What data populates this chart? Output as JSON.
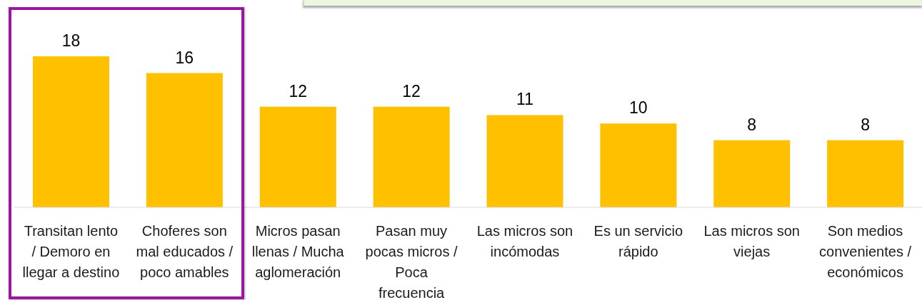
{
  "chart_data": {
    "type": "bar",
    "categories": [
      "Transitan lento / Demoro en llegar a destino",
      "Choferes son mal educados / poco amables",
      "Micros pasan llenas / Mucha aglomeración",
      "Pasan muy pocas micros / Poca frecuencia",
      "Las micros son incómodas",
      "Es un servicio rápido",
      "Las micros son viejas",
      "Son medios convenientes / económicos"
    ],
    "values": [
      18,
      16,
      12,
      12,
      11,
      10,
      8,
      8
    ],
    "color": "#ffc000",
    "data_labels": true
  }
}
